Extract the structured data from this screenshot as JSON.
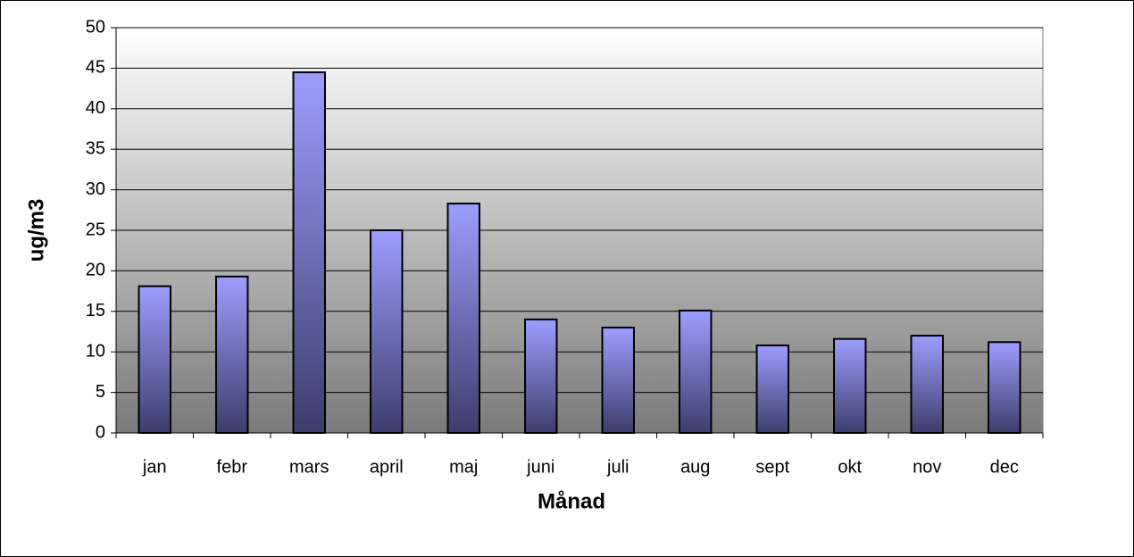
{
  "chart_data": {
    "type": "bar",
    "x_label": "Månad",
    "y_label": "ug/m3",
    "categories": [
      "jan",
      "febr",
      "mars",
      "april",
      "maj",
      "juni",
      "juli",
      "aug",
      "sept",
      "okt",
      "nov",
      "dec"
    ],
    "values": [
      18.1,
      19.3,
      44.5,
      25,
      28.3,
      14,
      13,
      15.1,
      10.8,
      11.6,
      12,
      11.2
    ],
    "color": "#9999ff",
    "ylim": [
      0,
      50
    ],
    "yticks": [
      0,
      5,
      10,
      15,
      20,
      25,
      30,
      35,
      40,
      45,
      50
    ],
    "grid": true
  }
}
